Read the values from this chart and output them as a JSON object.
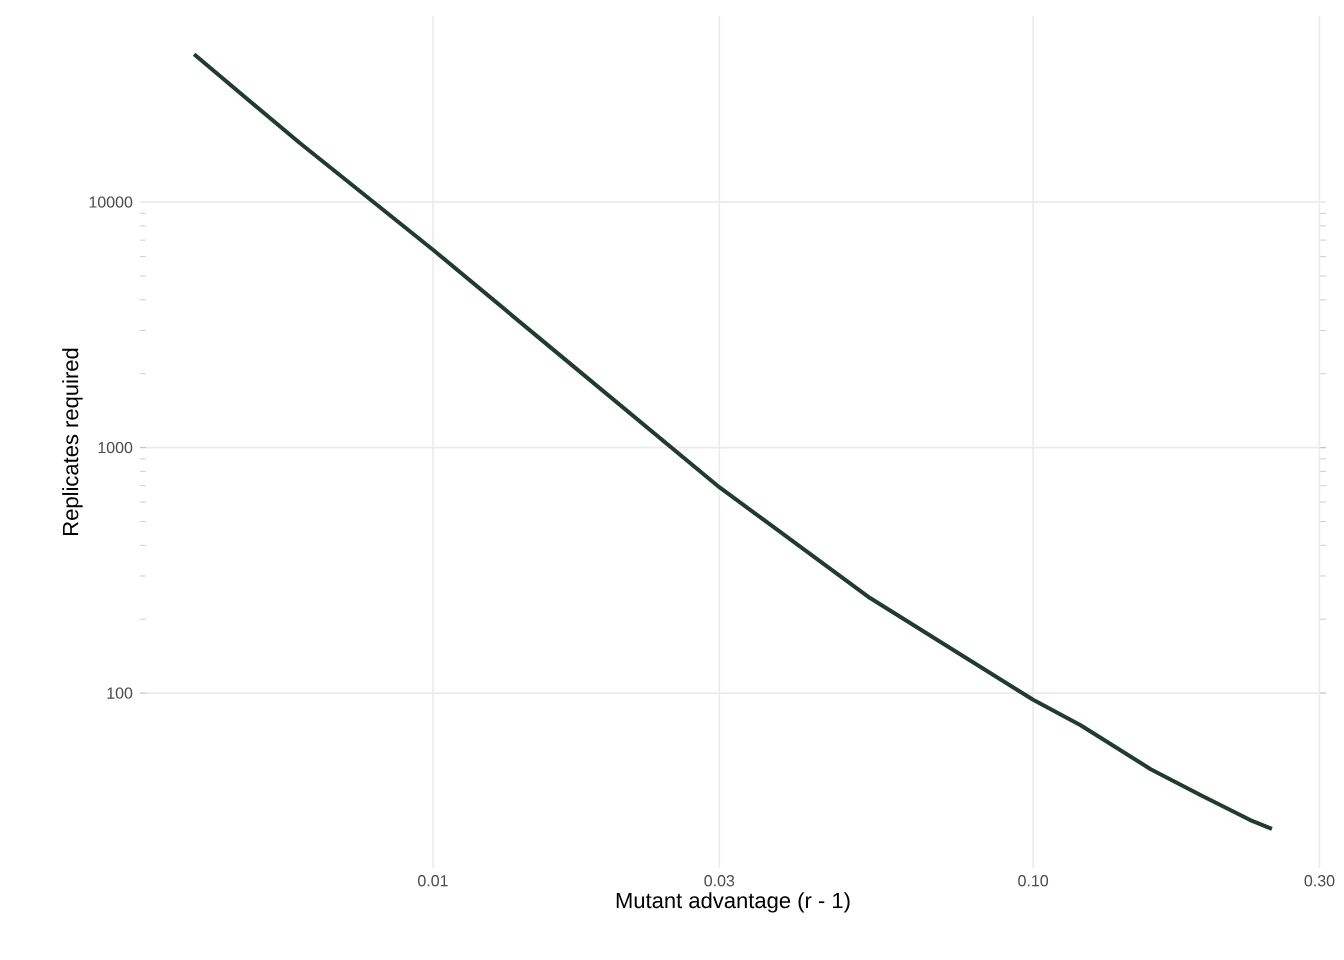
{
  "chart_data": {
    "type": "line",
    "xlabel": "Mutant advantage (r - 1)",
    "ylabel": "Replicates required",
    "log": "xy",
    "grid": true,
    "x": [
      0.004,
      0.006,
      0.01,
      0.0157,
      0.03,
      0.0535,
      0.1,
      0.12,
      0.157,
      0.19,
      0.23,
      0.25
    ],
    "series": [
      {
        "color": "#1e3d2a",
        "values": [
          40000,
          17400,
          6400,
          2560,
          690,
          244,
          94,
          74,
          49,
          38.5,
          30.4,
          28
        ]
      }
    ],
    "xlim": [
      0.00325,
      0.3076
    ],
    "ylim": [
      19.4,
      57300
    ],
    "xticks": [
      0.01,
      0.03,
      {
        "value": 0.1,
        "label": "0.10"
      },
      {
        "value": 0.3,
        "label": "0.30"
      }
    ],
    "yticks": [
      100,
      1000,
      10000
    ]
  }
}
